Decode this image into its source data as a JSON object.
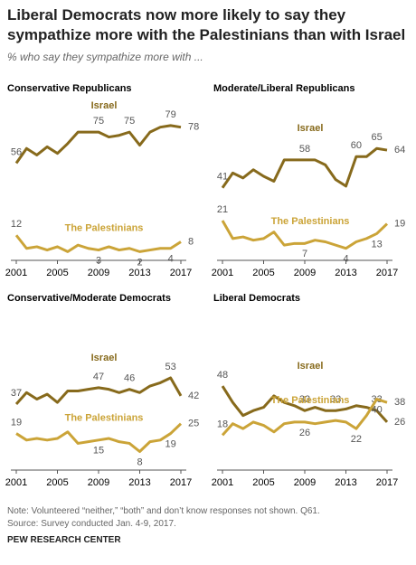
{
  "header": {
    "title": "Liberal Democrats now more likely to say they sympathize more with the Palestinians than with Israel",
    "subtitle": "% who say they sympathize more with ..."
  },
  "chart_data": [
    {
      "type": "line",
      "title": "Conservative Republicans",
      "x": [
        2001,
        2002,
        2003,
        2004,
        2005,
        2006,
        2007,
        2008,
        2009,
        2010,
        2011,
        2012,
        2013,
        2014,
        2015,
        2016,
        2017
      ],
      "xlim": [
        2001,
        2017
      ],
      "xticks": [
        2001,
        2005,
        2009,
        2013,
        2017
      ],
      "ylim": [
        0,
        85
      ],
      "series": [
        {
          "name": "Israel",
          "color": "#876a1c",
          "values": [
            56,
            65,
            61,
            66,
            62,
            68,
            75,
            75,
            75,
            72,
            73,
            75,
            67,
            75,
            78,
            79,
            78
          ],
          "value_labels": [
            "56",
            null,
            null,
            null,
            null,
            null,
            null,
            null,
            "75",
            null,
            null,
            "75",
            null,
            null,
            null,
            "79",
            "78"
          ]
        },
        {
          "name": "The Palestinians",
          "color": "#cba438",
          "values": [
            12,
            4,
            5,
            3,
            5,
            2,
            6,
            4,
            3,
            5,
            3,
            4,
            2,
            3,
            4,
            4,
            8
          ],
          "value_labels": [
            "12",
            null,
            null,
            null,
            null,
            null,
            null,
            null,
            "3",
            null,
            null,
            null,
            "2",
            null,
            null,
            "4",
            "8"
          ]
        }
      ]
    },
    {
      "type": "line",
      "title": "Moderate/Liberal Republicans",
      "x": [
        2001,
        2002,
        2003,
        2004,
        2005,
        2006,
        2007,
        2008,
        2009,
        2010,
        2011,
        2012,
        2013,
        2014,
        2015,
        2016,
        2017
      ],
      "xlim": [
        2001,
        2017
      ],
      "xticks": [
        2001,
        2005,
        2009,
        2013,
        2017
      ],
      "ylim": [
        0,
        85
      ],
      "series": [
        {
          "name": "Israel",
          "color": "#876a1c",
          "values": [
            41,
            50,
            47,
            52,
            48,
            45,
            58,
            58,
            58,
            58,
            55,
            46,
            42,
            60,
            60,
            65,
            64
          ],
          "value_labels": [
            "41",
            null,
            null,
            null,
            null,
            null,
            null,
            null,
            "58",
            null,
            null,
            null,
            null,
            "60",
            null,
            "65",
            "64"
          ]
        },
        {
          "name": "The Palestinians",
          "color": "#cba438",
          "values": [
            21,
            10,
            11,
            9,
            10,
            14,
            6,
            7,
            7,
            9,
            8,
            6,
            4,
            8,
            10,
            13,
            19
          ],
          "value_labels": [
            "21",
            null,
            null,
            null,
            null,
            null,
            null,
            null,
            "7",
            null,
            null,
            null,
            "4",
            null,
            null,
            "13",
            "19"
          ]
        }
      ]
    },
    {
      "type": "line",
      "title": "Conservative/Moderate Democrats",
      "x": [
        2001,
        2002,
        2003,
        2004,
        2005,
        2006,
        2007,
        2008,
        2009,
        2010,
        2011,
        2012,
        2013,
        2014,
        2015,
        2016,
        2017
      ],
      "xlim": [
        2001,
        2017
      ],
      "xticks": [
        2001,
        2005,
        2009,
        2013,
        2017
      ],
      "ylim": [
        0,
        85
      ],
      "series": [
        {
          "name": "Israel",
          "color": "#876a1c",
          "values": [
            37,
            44,
            40,
            43,
            38,
            45,
            45,
            46,
            47,
            46,
            44,
            46,
            44,
            48,
            50,
            53,
            42
          ],
          "value_labels": [
            "37",
            null,
            null,
            null,
            null,
            null,
            null,
            null,
            "47",
            null,
            null,
            "46",
            null,
            null,
            null,
            "53",
            "42"
          ]
        },
        {
          "name": "The Palestinians",
          "color": "#cba438",
          "values": [
            19,
            15,
            16,
            15,
            16,
            20,
            13,
            14,
            15,
            16,
            14,
            13,
            8,
            14,
            15,
            19,
            25
          ],
          "value_labels": [
            "19",
            null,
            null,
            null,
            null,
            null,
            null,
            null,
            "15",
            null,
            null,
            null,
            "8",
            null,
            null,
            "19",
            "25"
          ]
        }
      ]
    },
    {
      "type": "line",
      "title": "Liberal Democrats",
      "x": [
        2001,
        2002,
        2003,
        2004,
        2005,
        2006,
        2007,
        2008,
        2009,
        2010,
        2011,
        2012,
        2013,
        2014,
        2015,
        2016,
        2017
      ],
      "xlim": [
        2001,
        2017
      ],
      "xticks": [
        2001,
        2005,
        2009,
        2013,
        2017
      ],
      "ylim": [
        0,
        85
      ],
      "series": [
        {
          "name": "Israel",
          "color": "#876a1c",
          "values": [
            48,
            38,
            30,
            33,
            35,
            42,
            38,
            36,
            33,
            35,
            33,
            33,
            34,
            36,
            35,
            33,
            26
          ],
          "value_labels": [
            "48",
            null,
            null,
            null,
            null,
            null,
            null,
            null,
            "33",
            null,
            null,
            "33",
            null,
            null,
            null,
            "33",
            "26"
          ]
        },
        {
          "name": "The Palestinians",
          "color": "#cba438",
          "values": [
            18,
            25,
            22,
            26,
            24,
            20,
            25,
            26,
            26,
            25,
            26,
            27,
            26,
            22,
            30,
            40,
            38
          ],
          "value_labels": [
            "18",
            null,
            null,
            null,
            null,
            null,
            null,
            null,
            "26",
            null,
            null,
            null,
            null,
            "22",
            null,
            "40",
            "38"
          ]
        }
      ]
    }
  ],
  "footer": {
    "note": "Note: Volunteered “neither,” “both” and don’t know responses not shown. Q61.",
    "source": "Source: Survey conducted Jan. 4-9, 2017.",
    "credit": "PEW RESEARCH CENTER"
  }
}
